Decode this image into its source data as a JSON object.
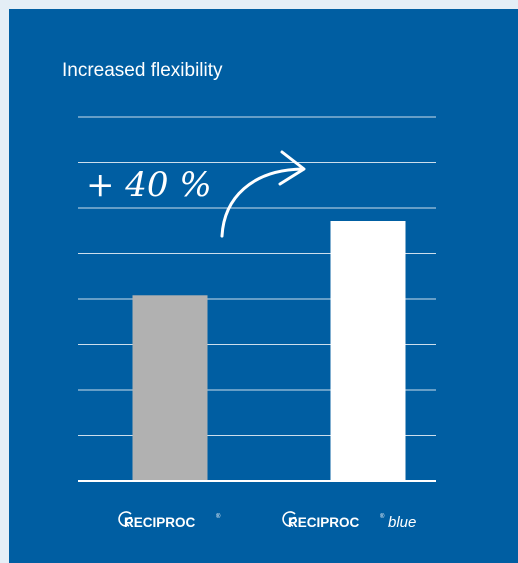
{
  "chart_data": {
    "type": "bar",
    "title": "Increased flexibility",
    "categories": [
      "RECIPROC",
      "RECIPROC blue"
    ],
    "values": [
      100,
      140
    ],
    "ylim": [
      0,
      196
    ],
    "grid": true,
    "xlabel": "",
    "ylabel": "",
    "annotation": "+ 40 %",
    "colors": {
      "background": "#005ea2",
      "bar_reciproc": "#b1b1b1",
      "bar_reciproc_blue": "#ffffff",
      "grid": "#ffffff"
    },
    "brands": [
      {
        "name": "RECIPROC",
        "reg": "®",
        "suffix": ""
      },
      {
        "name": "RECIPROC",
        "reg": "®",
        "suffix": "blue"
      }
    ]
  }
}
